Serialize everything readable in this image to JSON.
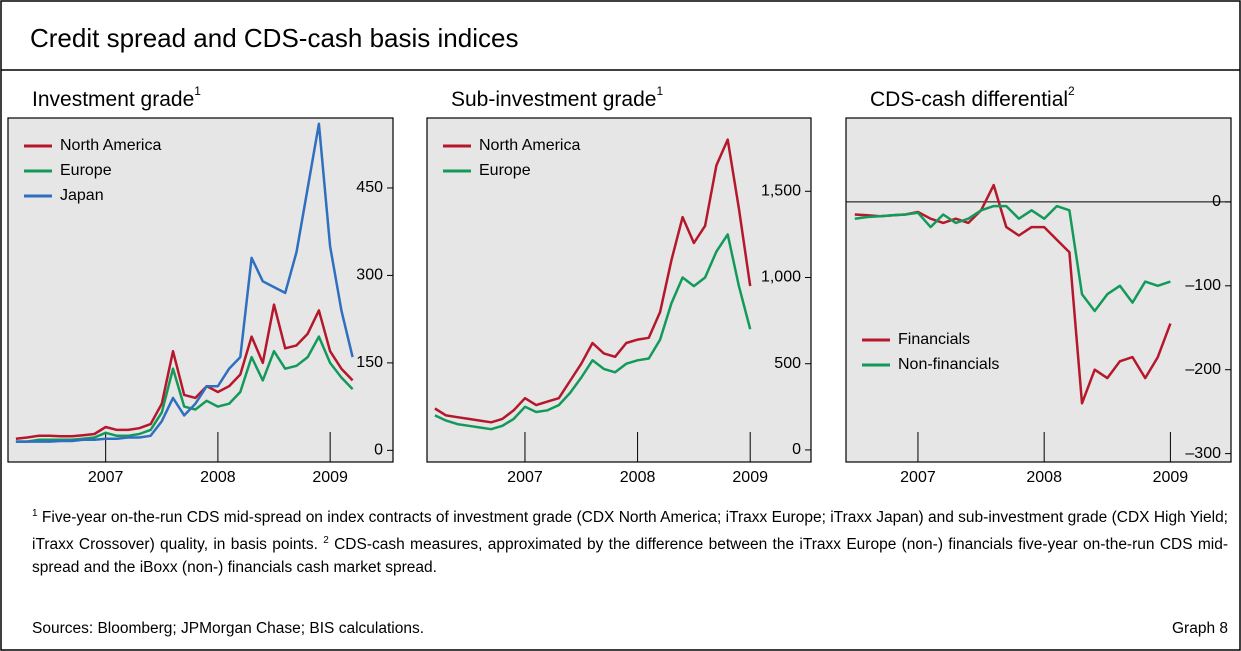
{
  "title": "Credit spread and CDS-cash basis indices",
  "chart_data": [
    {
      "type": "line",
      "title": "Investment grade",
      "title_note": "1",
      "x": [
        2006.2,
        2006.3,
        2006.4,
        2006.5,
        2006.6,
        2006.7,
        2006.8,
        2006.9,
        2007.0,
        2007.1,
        2007.2,
        2007.3,
        2007.4,
        2007.5,
        2007.6,
        2007.7,
        2007.8,
        2007.9,
        2008.0,
        2008.1,
        2008.2,
        2008.3,
        2008.4,
        2008.5,
        2008.6,
        2008.7,
        2008.8,
        2008.9,
        2009.0,
        2009.1,
        2009.2
      ],
      "series": [
        {
          "name": "North America",
          "color": "#b5182b",
          "values": [
            20,
            22,
            25,
            25,
            24,
            24,
            26,
            28,
            40,
            35,
            35,
            38,
            45,
            80,
            170,
            95,
            90,
            110,
            100,
            110,
            130,
            195,
            150,
            250,
            175,
            180,
            200,
            240,
            170,
            140,
            120
          ]
        },
        {
          "name": "Europe",
          "color": "#139a5a",
          "values": [
            15,
            15,
            18,
            18,
            18,
            18,
            20,
            22,
            30,
            25,
            25,
            28,
            35,
            65,
            140,
            75,
            70,
            85,
            75,
            80,
            100,
            160,
            120,
            170,
            140,
            145,
            160,
            195,
            150,
            125,
            105
          ]
        },
        {
          "name": "Japan",
          "color": "#2f6fc0",
          "values": [
            15,
            15,
            15,
            15,
            16,
            16,
            18,
            18,
            20,
            20,
            22,
            22,
            25,
            50,
            90,
            60,
            80,
            110,
            110,
            140,
            160,
            330,
            290,
            280,
            270,
            340,
            450,
            560,
            350,
            240,
            160
          ]
        }
      ],
      "xlim": [
        2006.13,
        2009.56
      ],
      "xticks": [
        2007,
        2008,
        2009
      ],
      "ylim": [
        -20,
        570
      ],
      "yticks": [
        0,
        150,
        300,
        450
      ],
      "legend": "upper left"
    },
    {
      "type": "line",
      "title": "Sub-investment grade",
      "title_note": "1",
      "x": [
        2006.2,
        2006.3,
        2006.4,
        2006.5,
        2006.6,
        2006.7,
        2006.8,
        2006.9,
        2007.0,
        2007.1,
        2007.2,
        2007.3,
        2007.4,
        2007.5,
        2007.6,
        2007.7,
        2007.8,
        2007.9,
        2008.0,
        2008.1,
        2008.2,
        2008.3,
        2008.4,
        2008.5,
        2008.6,
        2008.7,
        2008.8,
        2008.9,
        2009.0
      ],
      "series": [
        {
          "name": "North America",
          "color": "#b5182b",
          "values": [
            240,
            200,
            190,
            180,
            170,
            160,
            180,
            230,
            300,
            260,
            280,
            300,
            400,
            500,
            620,
            560,
            540,
            620,
            640,
            650,
            800,
            1100,
            1350,
            1200,
            1300,
            1650,
            1800,
            1400,
            950
          ]
        },
        {
          "name": "Europe",
          "color": "#139a5a",
          "values": [
            200,
            170,
            150,
            140,
            130,
            120,
            140,
            180,
            250,
            220,
            230,
            260,
            330,
            420,
            520,
            470,
            450,
            500,
            520,
            530,
            640,
            850,
            1000,
            950,
            1000,
            1150,
            1250,
            950,
            700
          ]
        }
      ],
      "xlim": [
        2006.13,
        2009.54
      ],
      "xticks": [
        2007,
        2008,
        2009
      ],
      "ylim": [
        -70,
        1925
      ],
      "yticks": [
        0,
        500,
        {
          "value": 1000,
          "label": "1,000"
        },
        {
          "value": 1500,
          "label": "1,500"
        }
      ],
      "legend": "upper left"
    },
    {
      "type": "line",
      "title": "CDS-cash differential",
      "title_note": "2",
      "x": [
        2006.5,
        2006.6,
        2006.7,
        2006.8,
        2006.9,
        2007.0,
        2007.1,
        2007.2,
        2007.3,
        2007.4,
        2007.5,
        2007.6,
        2007.7,
        2007.8,
        2007.9,
        2008.0,
        2008.1,
        2008.2,
        2008.3,
        2008.4,
        2008.5,
        2008.6,
        2008.7,
        2008.8,
        2008.9,
        2009.0
      ],
      "series": [
        {
          "name": "Financials",
          "color": "#b5182b",
          "values": [
            -15,
            -16,
            -17,
            -16,
            -15,
            -12,
            -20,
            -25,
            -20,
            -25,
            -10,
            20,
            -30,
            -40,
            -30,
            -30,
            -45,
            -60,
            -240,
            -200,
            -210,
            -190,
            -185,
            -210,
            -185,
            -145
          ]
        },
        {
          "name": "Non-financials",
          "color": "#139a5a",
          "values": [
            -20,
            -18,
            -17,
            -16,
            -15,
            -13,
            -30,
            -15,
            -25,
            -20,
            -10,
            -5,
            -5,
            -20,
            -10,
            -20,
            -5,
            -10,
            -110,
            -130,
            -110,
            -100,
            -120,
            -95,
            -100,
            -95
          ]
        }
      ],
      "xlim": [
        2006.43,
        2009.48
      ],
      "xticks": [
        2007,
        2008,
        2009
      ],
      "ylim": [
        -310,
        100
      ],
      "yticks": [
        0,
        {
          "value": -100,
          "label": "–100"
        },
        {
          "value": -200,
          "label": "–200"
        },
        {
          "value": -300,
          "label": "–300"
        }
      ],
      "reference_line": 0,
      "legend": "lower left"
    }
  ],
  "footnotes": [
    {
      "mark": "1",
      "text": "Five-year on-the-run CDS mid-spread on index contracts of investment grade (CDX North America; iTraxx Europe; iTraxx Japan) and sub-investment grade (CDX High Yield; iTraxx Crossover) quality, in basis points."
    },
    {
      "mark": "2",
      "text": "CDS-cash measures, approximated by the difference between the iTraxx Europe (non-) financials five-year on-the-run CDS mid-spread and the iBoxx (non-) financials cash market spread."
    }
  ],
  "sources": "Sources: Bloomberg; JPMorgan Chase; BIS calculations.",
  "graph_label": "Graph 8"
}
